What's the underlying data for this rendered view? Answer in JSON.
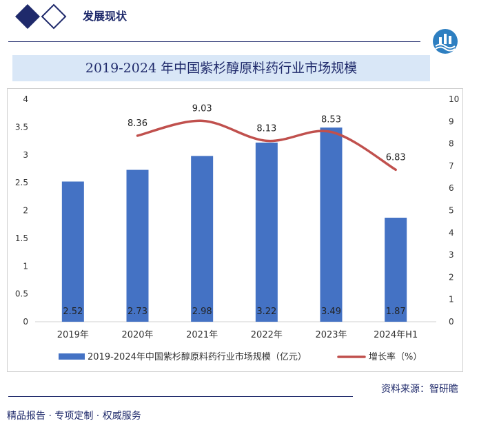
{
  "header": {
    "section_title": "发展现状"
  },
  "chart_title": "2019-2024 年中国紫杉醇原料药行业市场规模",
  "source": "资料来源：智研瞻",
  "footer": "精品报告 ·  专项定制 · 权威服务",
  "colors": {
    "bar": "#4472c4",
    "line": "#c0504d",
    "brand": "#1f2a6b",
    "title_bg": "#d9e7f7"
  },
  "chart_data": {
    "type": "bar",
    "categories": [
      "2019年",
      "2020年",
      "2021年",
      "2022年",
      "2023年",
      "2024年H1"
    ],
    "series": [
      {
        "name": "2019-2024年中国紫杉醇原料药行业市场规模（亿元）",
        "type": "bar",
        "axis": "left",
        "values": [
          2.52,
          2.73,
          2.98,
          3.22,
          3.49,
          1.87
        ]
      },
      {
        "name": "增长率（%）",
        "type": "line",
        "axis": "right",
        "values": [
          null,
          8.36,
          9.03,
          8.13,
          8.53,
          6.83
        ]
      }
    ],
    "y_left_ticks": [
      "0",
      "0.5",
      "1",
      "1.5",
      "2",
      "2.5",
      "3",
      "3.5",
      "4"
    ],
    "y_right_ticks": [
      "0",
      "1",
      "2",
      "3",
      "4",
      "5",
      "6",
      "7",
      "8",
      "9",
      "10"
    ],
    "y_left_range": [
      0,
      4
    ],
    "y_right_range": [
      0,
      10
    ],
    "grid": false,
    "legend_position": "bottom"
  }
}
